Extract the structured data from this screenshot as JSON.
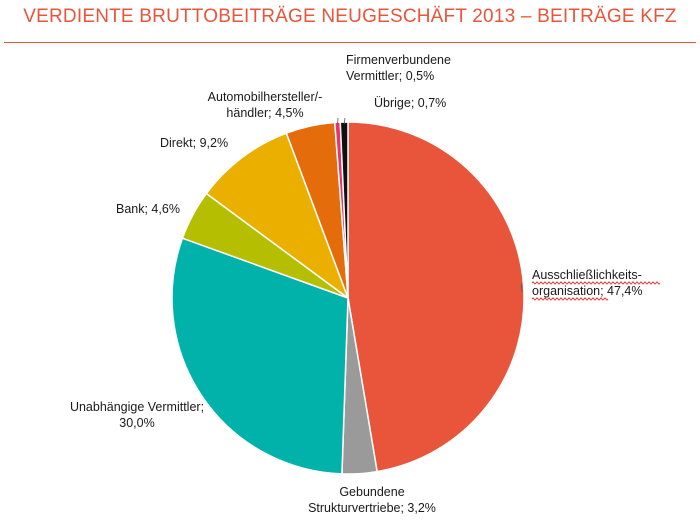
{
  "chart_data": {
    "type": "pie",
    "title": "VERDIENTE BRUTTOBEITRÄGE NEUGESCHÄFT 2013 – BEITRÄGE KFZ",
    "unit": "%",
    "slices": [
      {
        "label_lines": [
          "Ausschließlichkeits-",
          "organisation; 47,4%"
        ],
        "value": 47.4,
        "color": "#e8553a"
      },
      {
        "label_lines": [
          "Gebundene",
          "Strukturvertriebe; 3,2%"
        ],
        "value": 3.2,
        "color": "#9a9a9a"
      },
      {
        "label_lines": [
          "Unabhängige Vermittler;",
          "30,0%"
        ],
        "value": 30.0,
        "color": "#00b2aa"
      },
      {
        "label_lines": [
          "Bank; 4,6%"
        ],
        "value": 4.6,
        "color": "#b5be00"
      },
      {
        "label_lines": [
          "Direkt; 9,2%"
        ],
        "value": 9.2,
        "color": "#ebaf00"
      },
      {
        "label_lines": [
          "Automobilhersteller/-",
          "händler; 4,5%"
        ],
        "value": 4.5,
        "color": "#e46c0a"
      },
      {
        "label_lines": [
          "Firmenverbundene",
          "Vermittler; 0,5%"
        ],
        "value": 0.5,
        "color": "#e8346a"
      },
      {
        "label_lines": [
          "Übrige; 0,7%"
        ],
        "value": 0.7,
        "color": "#111111"
      }
    ]
  }
}
